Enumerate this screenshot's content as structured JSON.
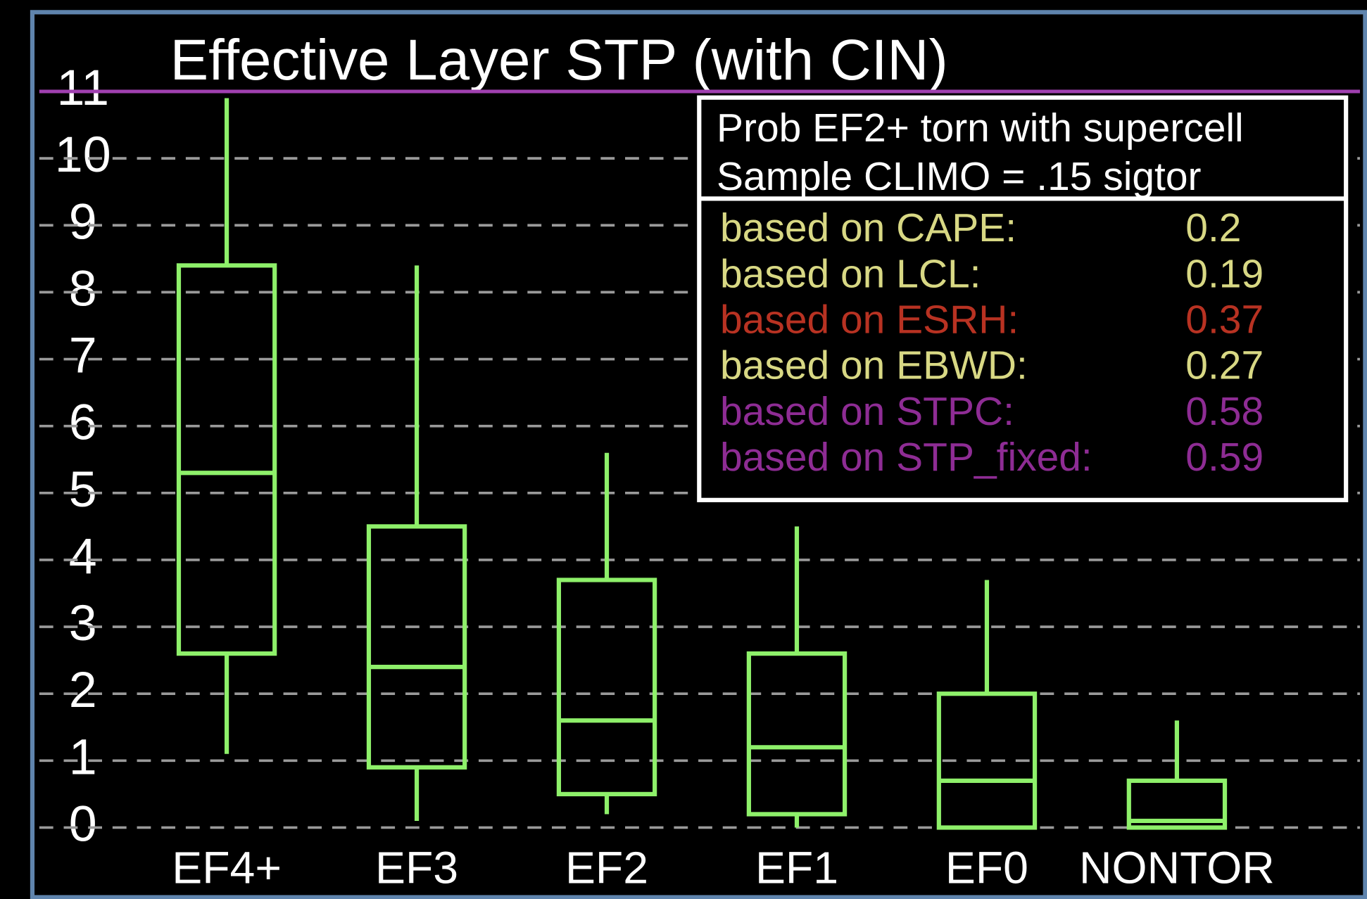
{
  "chart_data": {
    "type": "box",
    "title": "Effective Layer STP (with CIN)",
    "categories": [
      "EF4+",
      "EF3",
      "EF2",
      "EF1",
      "EF0",
      "NONTOR"
    ],
    "series": [
      {
        "color": "#8ef06a",
        "low": [
          1.1,
          0.1,
          0.2,
          0.0,
          0.0,
          0.0
        ],
        "q1": [
          2.6,
          0.9,
          0.5,
          0.2,
          0.0,
          0.0
        ],
        "median": [
          5.3,
          2.4,
          1.6,
          1.2,
          0.7,
          0.1
        ],
        "q3": [
          8.4,
          4.5,
          3.7,
          2.6,
          2.0,
          0.7
        ],
        "high": [
          10.9,
          8.4,
          5.6,
          4.5,
          3.7,
          1.6
        ]
      }
    ],
    "ylim": [
      0,
      11
    ],
    "yticks": [
      0,
      1,
      2,
      3,
      4,
      5,
      6,
      7,
      8,
      9,
      10,
      11
    ],
    "grid": true,
    "top_line_color": "#a040b0",
    "legend": {
      "header": [
        "Prob EF2+ torn with supercell",
        "Sample CLIMO = .15 sigtor"
      ],
      "rows": [
        {
          "label": "based on CAPE:",
          "value": 0.2,
          "color": "#d8d884"
        },
        {
          "label": "based on LCL:",
          "value": 0.19,
          "color": "#d8d884"
        },
        {
          "label": "based on ESRH:",
          "value": 0.37,
          "color": "#b83222"
        },
        {
          "label": "based on EBWD:",
          "value": 0.27,
          "color": "#d8d884"
        },
        {
          "label": "based on STPC:",
          "value": 0.58,
          "color": "#8e2c94"
        },
        {
          "label": "based on STP_fixed:",
          "value": 0.59,
          "color": "#8e2c94"
        }
      ]
    }
  }
}
